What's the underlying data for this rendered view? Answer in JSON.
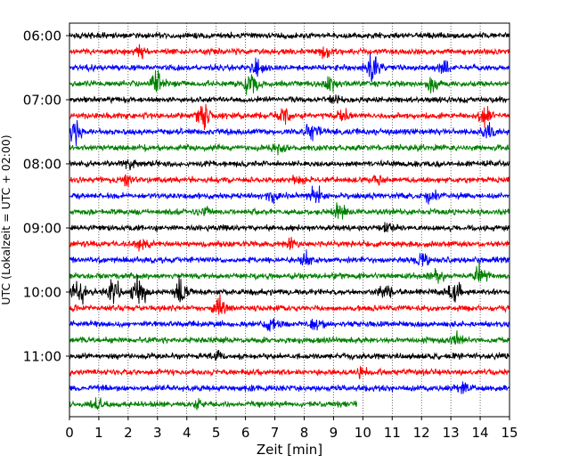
{
  "chart_data": {
    "type": "line",
    "xlabel": "Zeit  [min]",
    "ylabel": "UTC (Lokalzeit = UTC + 02:00)",
    "xlim": [
      0,
      15
    ],
    "x_ticks": [
      0,
      1,
      2,
      3,
      4,
      5,
      6,
      7,
      8,
      9,
      10,
      11,
      12,
      13,
      14,
      15
    ],
    "y_tick_labels": [
      "06:00",
      "07:00",
      "08:00",
      "09:00",
      "10:00",
      "11:00"
    ],
    "grid": "vertical dotted",
    "trace_colors": [
      "#000000",
      "#ff0000",
      "#0000ff",
      "#008000"
    ],
    "series": [
      {
        "start": "06:00",
        "end_min": 15,
        "color": "#000000",
        "events": []
      },
      {
        "start": "06:15",
        "end_min": 15,
        "color": "#ff0000",
        "events": [
          {
            "x": 2.4,
            "amp": 0.4
          },
          {
            "x": 8.7,
            "amp": 0.4
          }
        ]
      },
      {
        "start": "06:30",
        "end_min": 15,
        "color": "#0000ff",
        "events": [
          {
            "x": 6.4,
            "amp": 0.7
          },
          {
            "x": 10.3,
            "amp": 1.1
          },
          {
            "x": 12.8,
            "amp": 0.4
          }
        ]
      },
      {
        "start": "06:45",
        "end_min": 15,
        "color": "#008000",
        "events": [
          {
            "x": 3.0,
            "amp": 1.1
          },
          {
            "x": 6.2,
            "amp": 1.5
          },
          {
            "x": 8.9,
            "amp": 0.6
          },
          {
            "x": 12.4,
            "amp": 0.8
          }
        ]
      },
      {
        "start": "07:00",
        "end_min": 15,
        "color": "#000000",
        "events": [
          {
            "x": 9.0,
            "amp": 0.3
          }
        ]
      },
      {
        "start": "07:15",
        "end_min": 15,
        "color": "#ff0000",
        "events": [
          {
            "x": 4.6,
            "amp": 1.2
          },
          {
            "x": 7.3,
            "amp": 0.5
          },
          {
            "x": 9.3,
            "amp": 0.6
          },
          {
            "x": 14.2,
            "amp": 0.9
          }
        ]
      },
      {
        "start": "07:30",
        "end_min": 15,
        "color": "#0000ff",
        "events": [
          {
            "x": 0.2,
            "amp": 1.0
          },
          {
            "x": 8.3,
            "amp": 0.9
          },
          {
            "x": 14.3,
            "amp": 0.5
          }
        ]
      },
      {
        "start": "07:45",
        "end_min": 15,
        "color": "#008000",
        "events": [
          {
            "x": 7.1,
            "amp": 0.4
          }
        ]
      },
      {
        "start": "08:00",
        "end_min": 15,
        "color": "#000000",
        "events": [
          {
            "x": 2.1,
            "amp": 0.5
          }
        ]
      },
      {
        "start": "08:15",
        "end_min": 15,
        "color": "#ff0000",
        "events": [
          {
            "x": 1.9,
            "amp": 0.4
          },
          {
            "x": 7.8,
            "amp": 0.4
          },
          {
            "x": 10.5,
            "amp": 0.4
          }
        ]
      },
      {
        "start": "08:30",
        "end_min": 15,
        "color": "#0000ff",
        "events": [
          {
            "x": 7.0,
            "amp": 0.6
          },
          {
            "x": 8.4,
            "amp": 0.7
          },
          {
            "x": 12.3,
            "amp": 0.5
          }
        ]
      },
      {
        "start": "08:45",
        "end_min": 15,
        "color": "#008000",
        "events": [
          {
            "x": 4.6,
            "amp": 0.4
          },
          {
            "x": 9.2,
            "amp": 0.8
          }
        ]
      },
      {
        "start": "09:00",
        "end_min": 15,
        "color": "#000000",
        "events": [
          {
            "x": 10.8,
            "amp": 0.4
          }
        ]
      },
      {
        "start": "09:15",
        "end_min": 15,
        "color": "#ff0000",
        "events": [
          {
            "x": 2.5,
            "amp": 0.4
          },
          {
            "x": 7.5,
            "amp": 0.4
          }
        ]
      },
      {
        "start": "09:30",
        "end_min": 15,
        "color": "#0000ff",
        "events": [
          {
            "x": 8.1,
            "amp": 0.6
          },
          {
            "x": 12.0,
            "amp": 0.5
          }
        ]
      },
      {
        "start": "09:45",
        "end_min": 15,
        "color": "#008000",
        "events": [
          {
            "x": 12.5,
            "amp": 0.5
          },
          {
            "x": 14.0,
            "amp": 1.3
          }
        ]
      },
      {
        "start": "10:00",
        "end_min": 15,
        "color": "#000000",
        "events": [
          {
            "x": 0.3,
            "amp": 1.4
          },
          {
            "x": 1.5,
            "amp": 1.0
          },
          {
            "x": 2.4,
            "amp": 1.4
          },
          {
            "x": 3.8,
            "amp": 1.2
          },
          {
            "x": 10.8,
            "amp": 0.6
          },
          {
            "x": 13.1,
            "amp": 1.0
          }
        ]
      },
      {
        "start": "10:15",
        "end_min": 15,
        "color": "#ff0000",
        "events": [
          {
            "x": 5.1,
            "amp": 1.0
          }
        ]
      },
      {
        "start": "10:30",
        "end_min": 15,
        "color": "#0000ff",
        "events": [
          {
            "x": 6.9,
            "amp": 0.6
          },
          {
            "x": 8.4,
            "amp": 0.5
          }
        ]
      },
      {
        "start": "10:45",
        "end_min": 15,
        "color": "#008000",
        "events": [
          {
            "x": 13.2,
            "amp": 0.4
          }
        ]
      },
      {
        "start": "11:00",
        "end_min": 15,
        "color": "#000000",
        "events": [
          {
            "x": 5.0,
            "amp": 0.4
          }
        ]
      },
      {
        "start": "11:15",
        "end_min": 15,
        "color": "#ff0000",
        "events": [
          {
            "x": 10.0,
            "amp": 0.4
          }
        ]
      },
      {
        "start": "11:30",
        "end_min": 15,
        "color": "#0000ff",
        "events": [
          {
            "x": 13.4,
            "amp": 0.6
          }
        ]
      },
      {
        "start": "11:45",
        "end_min": 9.8,
        "color": "#008000",
        "events": [
          {
            "x": 1.0,
            "amp": 0.4
          },
          {
            "x": 4.4,
            "amp": 0.3
          }
        ]
      }
    ]
  }
}
